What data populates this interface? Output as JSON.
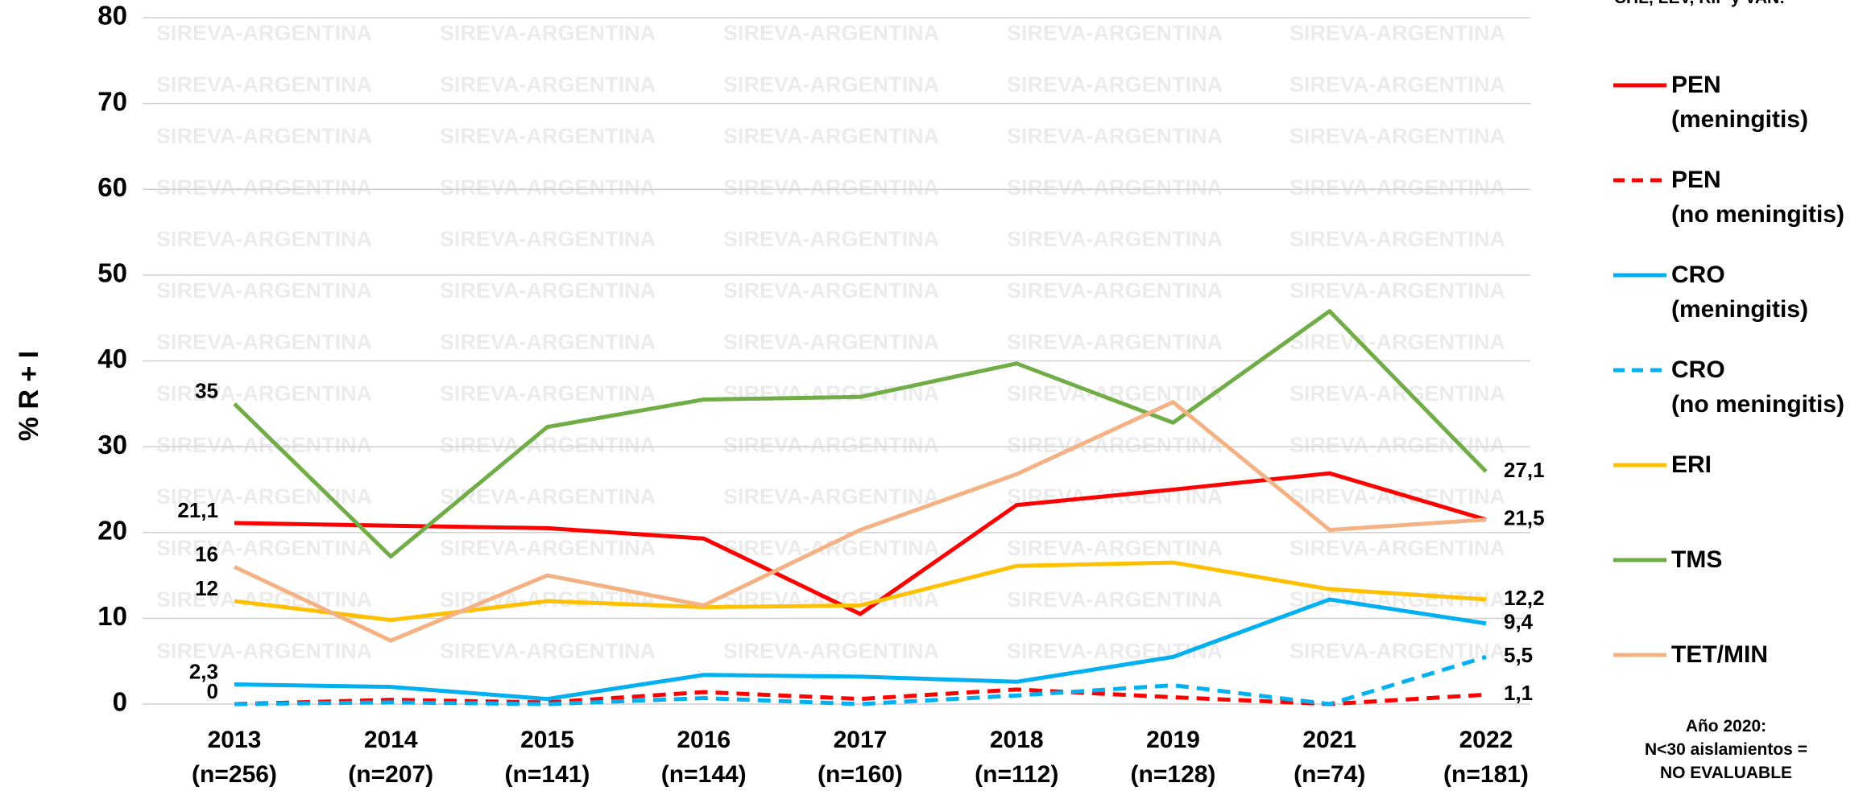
{
  "chart_data": {
    "type": "line",
    "y_label": "% R + I",
    "watermark": "SIREVA-ARGENTINA",
    "legend_title": "CHL, LEV, RIF y VAN:",
    "note": "Año 2020:\nN<30 aislamientos =\nNO EVALUABLE",
    "categories": [
      "2013\n(n=256)",
      "2014\n(n=207)",
      "2015\n(n=141)",
      "2016\n(n=144)",
      "2017\n(n=160)",
      "2018\n(n=112)",
      "2019\n(n=128)",
      "2021\n(n=74)",
      "2022\n(n=181)"
    ],
    "ylim": [
      0,
      80
    ],
    "yticks": [
      0,
      10,
      20,
      30,
      40,
      50,
      60,
      70,
      80
    ],
    "grid": true,
    "legend": "right",
    "series": [
      {
        "name": "PEN\n(meningitis)",
        "color": "#ff0000",
        "dashed": false,
        "values": [
          21.1,
          20.8,
          20.5,
          19.3,
          10.5,
          23.2,
          25,
          26.9,
          21.5
        ],
        "value_labels": [
          "21,1",
          null,
          null,
          null,
          null,
          null,
          null,
          null,
          "21,5"
        ]
      },
      {
        "name": "PEN\n(no meningitis)",
        "color": "#ff0000",
        "dashed": true,
        "values": [
          0,
          0.5,
          0.2,
          1.4,
          0.6,
          1.7,
          0.8,
          0,
          1.1
        ],
        "value_labels": [
          "0",
          null,
          null,
          null,
          null,
          null,
          null,
          null,
          "1,1"
        ]
      },
      {
        "name": "CRO\n(meningitis)",
        "color": "#00b0f0",
        "dashed": false,
        "values": [
          2.3,
          2.0,
          0.6,
          3.4,
          3.2,
          2.6,
          5.5,
          12.2,
          9.4
        ],
        "value_labels": [
          "2,3",
          null,
          null,
          null,
          null,
          null,
          null,
          null,
          "9,4"
        ]
      },
      {
        "name": "CRO\n(no meningitis)",
        "color": "#00b0f0",
        "dashed": true,
        "values": [
          0,
          0.2,
          0,
          0.7,
          0,
          1.0,
          2.2,
          0,
          5.5
        ],
        "value_labels": [
          null,
          null,
          null,
          null,
          null,
          null,
          null,
          null,
          "5,5"
        ]
      },
      {
        "name": "ERI",
        "color": "#ffc000",
        "dashed": false,
        "values": [
          12,
          9.8,
          12,
          11.3,
          11.5,
          16.1,
          16.5,
          13.4,
          12.2
        ],
        "value_labels": [
          "12",
          null,
          null,
          null,
          null,
          null,
          null,
          null,
          "12,2"
        ]
      },
      {
        "name": "TMS",
        "color": "#70ad47",
        "dashed": false,
        "values": [
          35,
          17.2,
          32.3,
          35.5,
          35.8,
          39.7,
          32.8,
          45.8,
          27.1
        ],
        "value_labels": [
          "35",
          null,
          null,
          null,
          null,
          null,
          null,
          null,
          "27,1"
        ]
      },
      {
        "name": "TET/MIN",
        "color": "#f4b183",
        "dashed": false,
        "values": [
          16,
          7.4,
          15,
          11.5,
          20.3,
          26.8,
          35.2,
          20.3,
          21.5
        ],
        "value_labels": [
          "16",
          null,
          null,
          null,
          null,
          null,
          null,
          null,
          null
        ]
      }
    ]
  }
}
